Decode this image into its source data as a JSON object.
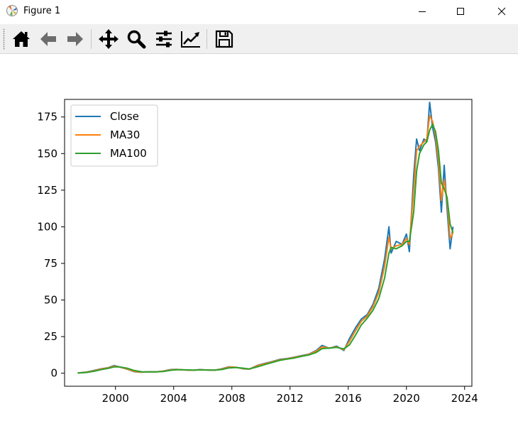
{
  "window": {
    "title": "Figure 1"
  },
  "toolbar": {
    "buttons": [
      {
        "name": "home-icon"
      },
      {
        "name": "back-icon"
      },
      {
        "name": "forward-icon"
      },
      {
        "name": "pan-icon"
      },
      {
        "name": "zoom-icon"
      },
      {
        "name": "subplots-icon"
      },
      {
        "name": "edit-axis-icon"
      },
      {
        "name": "save-icon"
      }
    ]
  },
  "chart_data": {
    "type": "line",
    "title": "",
    "xlabel": "",
    "ylabel": "",
    "xlim": [
      1996.5,
      2024.5
    ],
    "ylim": [
      -8.9,
      187
    ],
    "xticks": [
      2000,
      2004,
      2008,
      2012,
      2016,
      2020,
      2024
    ],
    "yticks": [
      0,
      25,
      50,
      75,
      100,
      125,
      150,
      175
    ],
    "legend": "top-left",
    "grid": false,
    "series": [
      {
        "name": "Close",
        "color": "#1f77b4",
        "points": [
          [
            1997.4,
            0.1
          ],
          [
            1998.0,
            0.8
          ],
          [
            1998.5,
            1.8
          ],
          [
            1999.0,
            3.0
          ],
          [
            1999.5,
            3.8
          ],
          [
            1999.9,
            5.2
          ],
          [
            2000.3,
            4.2
          ],
          [
            2000.8,
            2.8
          ],
          [
            2001.3,
            1.0
          ],
          [
            2001.8,
            0.7
          ],
          [
            2002.3,
            0.9
          ],
          [
            2002.8,
            0.9
          ],
          [
            2003.3,
            1.5
          ],
          [
            2003.8,
            2.5
          ],
          [
            2004.2,
            2.6
          ],
          [
            2004.8,
            2.2
          ],
          [
            2005.3,
            2.0
          ],
          [
            2005.8,
            2.5
          ],
          [
            2006.3,
            2.2
          ],
          [
            2006.8,
            2.0
          ],
          [
            2007.3,
            3.0
          ],
          [
            2007.8,
            4.4
          ],
          [
            2008.3,
            4.0
          ],
          [
            2008.8,
            3.0
          ],
          [
            2009.2,
            2.8
          ],
          [
            2009.8,
            5.5
          ],
          [
            2010.3,
            6.8
          ],
          [
            2010.8,
            8.0
          ],
          [
            2011.3,
            9.5
          ],
          [
            2011.8,
            10.0
          ],
          [
            2012.3,
            11.0
          ],
          [
            2012.8,
            12.0
          ],
          [
            2013.3,
            13.0
          ],
          [
            2013.8,
            15.5
          ],
          [
            2014.2,
            19.0
          ],
          [
            2014.7,
            17.0
          ],
          [
            2015.2,
            18.5
          ],
          [
            2015.7,
            15.5
          ],
          [
            2016.1,
            24.0
          ],
          [
            2016.5,
            31.0
          ],
          [
            2016.9,
            37.0
          ],
          [
            2017.3,
            40.0
          ],
          [
            2017.7,
            47.0
          ],
          [
            2018.1,
            58.0
          ],
          [
            2018.5,
            78.0
          ],
          [
            2018.8,
            100.0
          ],
          [
            2018.95,
            82.0
          ],
          [
            2019.3,
            90.0
          ],
          [
            2019.7,
            88.0
          ],
          [
            2020.0,
            95.0
          ],
          [
            2020.2,
            83.0
          ],
          [
            2020.5,
            135.0
          ],
          [
            2020.7,
            160.0
          ],
          [
            2020.9,
            152.0
          ],
          [
            2021.2,
            160.0
          ],
          [
            2021.4,
            158.0
          ],
          [
            2021.6,
            185.0
          ],
          [
            2021.8,
            168.0
          ],
          [
            2022.0,
            158.0
          ],
          [
            2022.2,
            140.0
          ],
          [
            2022.4,
            110.0
          ],
          [
            2022.6,
            142.0
          ],
          [
            2022.8,
            112.0
          ],
          [
            2023.0,
            85.0
          ],
          [
            2023.2,
            100.0
          ]
        ]
      },
      {
        "name": "MA30",
        "color": "#ff7f0e",
        "points": [
          [
            1997.4,
            0.1
          ],
          [
            1998.0,
            0.7
          ],
          [
            1998.5,
            1.6
          ],
          [
            1999.0,
            2.8
          ],
          [
            1999.5,
            3.6
          ],
          [
            1999.9,
            4.8
          ],
          [
            2000.3,
            4.2
          ],
          [
            2000.8,
            3.0
          ],
          [
            2001.3,
            1.2
          ],
          [
            2001.8,
            0.8
          ],
          [
            2002.3,
            0.9
          ],
          [
            2002.8,
            0.9
          ],
          [
            2003.3,
            1.4
          ],
          [
            2003.8,
            2.3
          ],
          [
            2004.2,
            2.5
          ],
          [
            2004.8,
            2.2
          ],
          [
            2005.3,
            2.0
          ],
          [
            2005.8,
            2.4
          ],
          [
            2006.3,
            2.2
          ],
          [
            2006.8,
            2.0
          ],
          [
            2007.3,
            2.8
          ],
          [
            2007.8,
            4.2
          ],
          [
            2008.3,
            4.0
          ],
          [
            2008.8,
            3.1
          ],
          [
            2009.2,
            2.8
          ],
          [
            2009.8,
            5.2
          ],
          [
            2010.3,
            6.5
          ],
          [
            2010.8,
            7.8
          ],
          [
            2011.3,
            9.2
          ],
          [
            2011.8,
            9.8
          ],
          [
            2012.3,
            10.8
          ],
          [
            2012.8,
            11.8
          ],
          [
            2013.3,
            12.8
          ],
          [
            2013.8,
            15.0
          ],
          [
            2014.2,
            18.0
          ],
          [
            2014.7,
            17.2
          ],
          [
            2015.2,
            18.0
          ],
          [
            2015.7,
            16.0
          ],
          [
            2016.1,
            22.0
          ],
          [
            2016.5,
            29.0
          ],
          [
            2016.9,
            35.5
          ],
          [
            2017.3,
            39.0
          ],
          [
            2017.7,
            45.5
          ],
          [
            2018.1,
            55.0
          ],
          [
            2018.5,
            73.0
          ],
          [
            2018.8,
            93.0
          ],
          [
            2018.95,
            85.0
          ],
          [
            2019.3,
            87.0
          ],
          [
            2019.7,
            88.0
          ],
          [
            2020.0,
            92.0
          ],
          [
            2020.2,
            88.0
          ],
          [
            2020.5,
            125.0
          ],
          [
            2020.7,
            152.0
          ],
          [
            2020.9,
            155.0
          ],
          [
            2021.2,
            158.0
          ],
          [
            2021.4,
            160.0
          ],
          [
            2021.6,
            176.0
          ],
          [
            2021.8,
            172.0
          ],
          [
            2022.0,
            162.0
          ],
          [
            2022.2,
            145.0
          ],
          [
            2022.4,
            118.0
          ],
          [
            2022.6,
            132.0
          ],
          [
            2022.8,
            118.0
          ],
          [
            2023.0,
            92.0
          ],
          [
            2023.2,
            96.0
          ]
        ]
      },
      {
        "name": "MA100",
        "color": "#2ca02c",
        "points": [
          [
            1997.4,
            0.1
          ],
          [
            1998.0,
            0.5
          ],
          [
            1998.5,
            1.3
          ],
          [
            1999.0,
            2.4
          ],
          [
            1999.5,
            3.3
          ],
          [
            1999.9,
            4.3
          ],
          [
            2000.3,
            4.3
          ],
          [
            2000.8,
            3.4
          ],
          [
            2001.3,
            1.8
          ],
          [
            2001.8,
            1.0
          ],
          [
            2002.3,
            0.9
          ],
          [
            2002.8,
            0.9
          ],
          [
            2003.3,
            1.2
          ],
          [
            2003.8,
            2.0
          ],
          [
            2004.2,
            2.4
          ],
          [
            2004.8,
            2.3
          ],
          [
            2005.3,
            2.1
          ],
          [
            2005.8,
            2.2
          ],
          [
            2006.3,
            2.2
          ],
          [
            2006.8,
            2.1
          ],
          [
            2007.3,
            2.5
          ],
          [
            2007.8,
            3.6
          ],
          [
            2008.3,
            3.9
          ],
          [
            2008.8,
            3.4
          ],
          [
            2009.2,
            2.9
          ],
          [
            2009.8,
            4.5
          ],
          [
            2010.3,
            6.0
          ],
          [
            2010.8,
            7.4
          ],
          [
            2011.3,
            8.8
          ],
          [
            2011.8,
            9.6
          ],
          [
            2012.3,
            10.4
          ],
          [
            2012.8,
            11.5
          ],
          [
            2013.3,
            12.5
          ],
          [
            2013.8,
            14.2
          ],
          [
            2014.2,
            16.8
          ],
          [
            2014.7,
            17.2
          ],
          [
            2015.2,
            17.6
          ],
          [
            2015.7,
            16.6
          ],
          [
            2016.1,
            19.5
          ],
          [
            2016.5,
            26.0
          ],
          [
            2016.9,
            33.0
          ],
          [
            2017.3,
            37.5
          ],
          [
            2017.7,
            43.0
          ],
          [
            2018.1,
            51.0
          ],
          [
            2018.5,
            65.0
          ],
          [
            2018.8,
            82.0
          ],
          [
            2018.95,
            86.0
          ],
          [
            2019.3,
            85.0
          ],
          [
            2019.7,
            87.0
          ],
          [
            2020.0,
            90.0
          ],
          [
            2020.2,
            90.0
          ],
          [
            2020.5,
            110.0
          ],
          [
            2020.7,
            138.0
          ],
          [
            2020.9,
            150.0
          ],
          [
            2021.2,
            156.0
          ],
          [
            2021.4,
            158.0
          ],
          [
            2021.6,
            166.0
          ],
          [
            2021.8,
            170.0
          ],
          [
            2022.0,
            165.0
          ],
          [
            2022.2,
            152.0
          ],
          [
            2022.4,
            130.0
          ],
          [
            2022.6,
            126.0
          ],
          [
            2022.8,
            120.0
          ],
          [
            2023.0,
            102.0
          ],
          [
            2023.2,
            96.0
          ]
        ]
      }
    ]
  }
}
